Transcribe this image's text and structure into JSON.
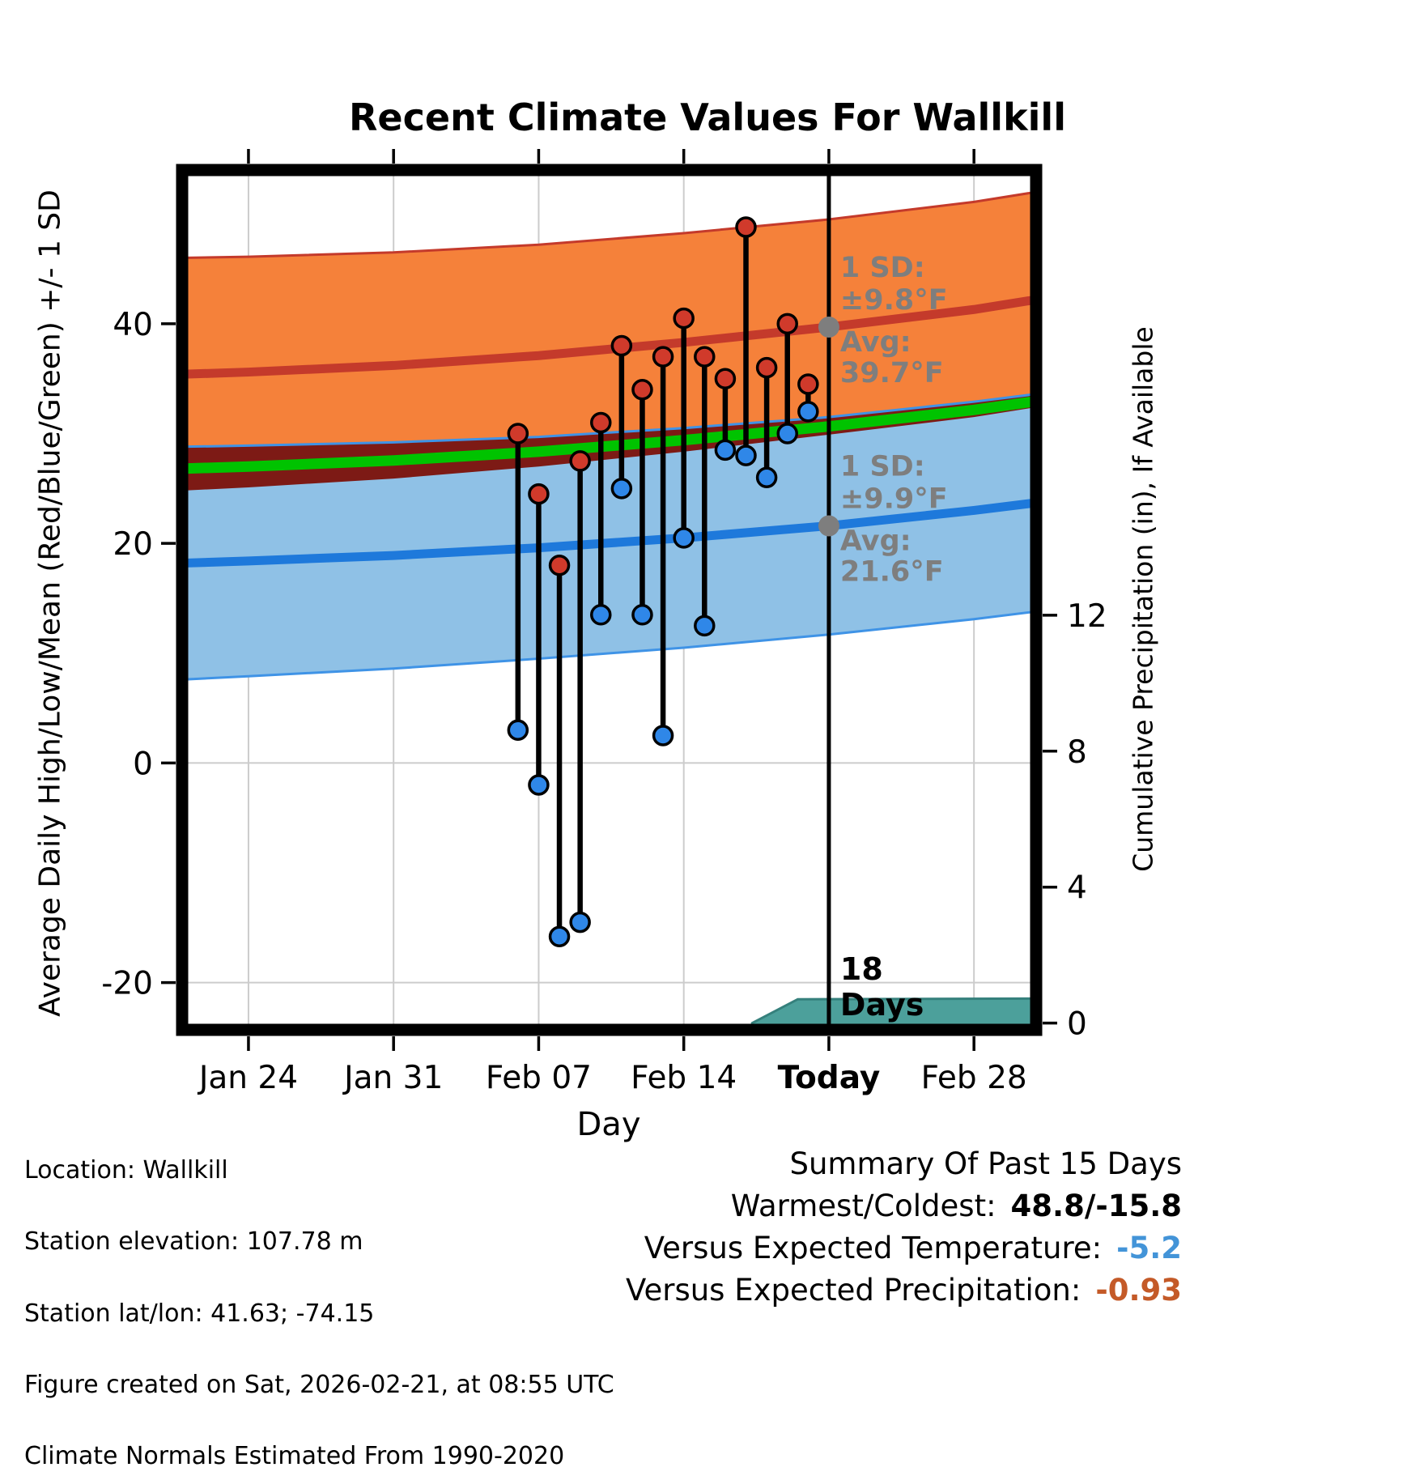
{
  "title": "Recent Climate Values For Wallkill",
  "axes": {
    "left_label": "Average Daily High/Low/Mean (Red/Blue/Green) +/- 1 SD",
    "right_label": "Cumulative Precipitation (in), If Available",
    "x_label": "Day"
  },
  "footer": {
    "location": "Location: Wallkill",
    "elevation": "Station elevation: 107.78 m",
    "latlon": "Station lat/lon: 41.63; -74.15",
    "created": "Figure created on Sat, 2026-02-21, at 08:55 UTC",
    "normals": "Climate Normals Estimated From 1990-2020"
  },
  "summary": {
    "title": "Summary Of Past 15 Days",
    "warmest_label": "Warmest/Coldest:",
    "warmest_value": "48.8/-15.8",
    "temp_label": "Versus Expected Temperature:",
    "temp_value": "-5.2",
    "precip_label": "Versus Expected Precipitation:",
    "precip_value": "-0.93"
  },
  "chart_data": {
    "type": "line",
    "title": "Recent Climate Values For Wallkill",
    "xlabel": "Day",
    "ylabel_left": "Average Daily High/Low/Mean (Red/Blue/Green) +/- 1 SD",
    "ylabel_right": "Cumulative Precipitation (in), If Available",
    "xlim": [
      -3.2,
      38
    ],
    "ylim_left": [
      -24.3,
      54
    ],
    "ylim_right": [
      -0.2,
      25.1
    ],
    "x_ticks": [
      {
        "day": 0,
        "label": "Jan 24",
        "bold": false
      },
      {
        "day": 7,
        "label": "Jan 31",
        "bold": false
      },
      {
        "day": 14,
        "label": "Feb 07",
        "bold": false
      },
      {
        "day": 21,
        "label": "Feb 14",
        "bold": false
      },
      {
        "day": 28,
        "label": "Today",
        "bold": true
      },
      {
        "day": 35,
        "label": "Feb 28",
        "bold": false
      }
    ],
    "y_ticks_left": [
      -20,
      0,
      20,
      40
    ],
    "y_ticks_right": [
      0,
      4,
      8,
      12
    ],
    "today_day": 28,
    "normals": {
      "days": [
        -3.2,
        0,
        7,
        14,
        21,
        28,
        35,
        38
      ],
      "high_mean": [
        35.4,
        35.6,
        36.2,
        37.1,
        38.3,
        39.7,
        41.3,
        42.2
      ],
      "high_sd": [
        10.6,
        10.5,
        10.3,
        10.1,
        9.95,
        9.8,
        9.8,
        9.8
      ],
      "low_mean": [
        18.2,
        18.4,
        18.9,
        19.6,
        20.5,
        21.6,
        23.0,
        23.7
      ],
      "low_sd": [
        10.6,
        10.5,
        10.3,
        10.1,
        10.0,
        9.9,
        9.9,
        9.9
      ]
    },
    "observations": [
      {
        "day": 13,
        "date": "Feb 06",
        "high": 30.0,
        "low": 3.0
      },
      {
        "day": 14,
        "date": "Feb 07",
        "high": 24.5,
        "low": -2.0
      },
      {
        "day": 15,
        "date": "Feb 08",
        "high": 18.0,
        "low": -15.8
      },
      {
        "day": 16,
        "date": "Feb 09",
        "high": 27.5,
        "low": -14.5
      },
      {
        "day": 17,
        "date": "Feb 10",
        "high": 31.0,
        "low": 13.5
      },
      {
        "day": 18,
        "date": "Feb 11",
        "high": 38.0,
        "low": 25.0
      },
      {
        "day": 19,
        "date": "Feb 12",
        "high": 34.0,
        "low": 13.5
      },
      {
        "day": 20,
        "date": "Feb 13",
        "high": 37.0,
        "low": 2.5
      },
      {
        "day": 21,
        "date": "Feb 14",
        "high": 40.5,
        "low": 20.5
      },
      {
        "day": 22,
        "date": "Feb 15",
        "high": 37.0,
        "low": 12.5
      },
      {
        "day": 23,
        "date": "Feb 16",
        "high": 35.0,
        "low": 28.5
      },
      {
        "day": 24,
        "date": "Feb 17",
        "high": 48.8,
        "low": 28.0
      },
      {
        "day": 25,
        "date": "Feb 18",
        "high": 36.0,
        "low": 26.0
      },
      {
        "day": 26,
        "date": "Feb 19",
        "high": 40.0,
        "low": 30.0
      },
      {
        "day": 27,
        "date": "Feb 20",
        "high": 34.5,
        "low": 32.0
      }
    ],
    "precip_cumulative": [
      {
        "day": 24.3,
        "value": 0.0
      },
      {
        "day": 26.5,
        "value": 0.7
      },
      {
        "day": 38.0,
        "value": 0.72
      }
    ],
    "annotations": {
      "high_sd_label": "1 SD:",
      "high_sd_value": "±9.8°F",
      "high_avg_label": "Avg:",
      "high_avg_value": "39.7°F",
      "high_avg_y": 39.7,
      "low_sd_label": "1 SD:",
      "low_sd_value": "±9.9°F",
      "low_avg_label": "Avg:",
      "low_avg_value": "21.6°F",
      "low_avg_y": 21.6,
      "days_count_line1": "18",
      "days_count_line2": "Days"
    },
    "colors": {
      "high_band": "#F5813A",
      "high_mean": "#C43A2B",
      "overlap_band": "#7D1A15",
      "low_band": "#8FC1E6",
      "low_mean": "#1E79DB",
      "band_edge_blue": "#3F93E6",
      "mean_line": "#00C300",
      "dot_high": "#D03A2B",
      "dot_low": "#2F87E8",
      "precip_fill": "#4CA09B",
      "precip_edge": "#35807C",
      "annotation": "#7E7E7E",
      "grid": "#CCCCCC",
      "summary_temp": "#4394D8",
      "summary_precip": "#C45A28"
    }
  }
}
